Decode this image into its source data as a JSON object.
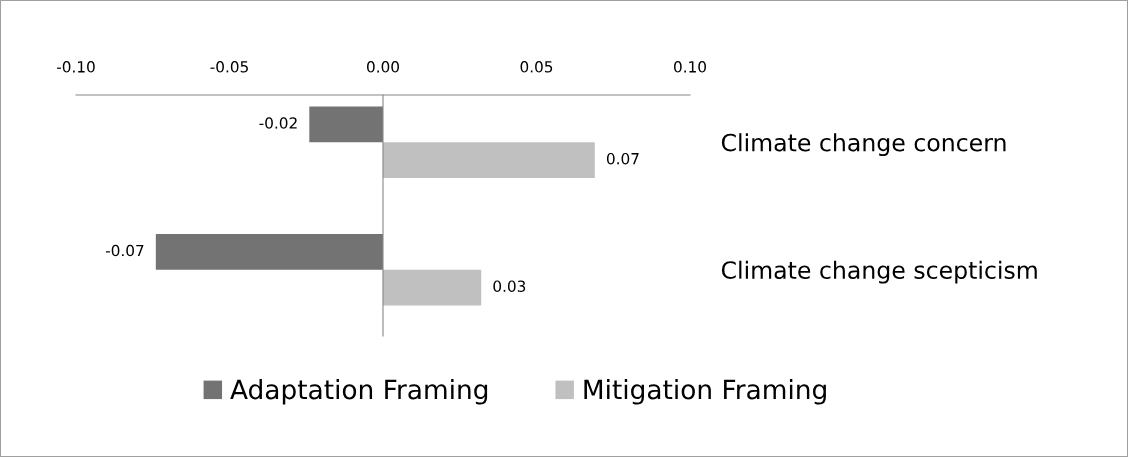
{
  "chart_data": {
    "type": "bar",
    "orientation": "horizontal",
    "categories": [
      "Climate change concern",
      "Climate change scepticism"
    ],
    "series": [
      {
        "name": "Adaptation Framing",
        "color": "#737373",
        "values": [
          -0.024,
          -0.074
        ],
        "value_labels": [
          "-0.02",
          "-0.07"
        ]
      },
      {
        "name": "Mitigation Framing",
        "color": "#c0c0c0",
        "values": [
          0.069,
          0.032
        ],
        "value_labels": [
          "0.07",
          "0.03"
        ]
      }
    ],
    "xlim": [
      -0.1,
      0.1
    ],
    "xticks": [
      {
        "value": -0.1,
        "label": "-0.10"
      },
      {
        "value": -0.05,
        "label": "-0.05"
      },
      {
        "value": 0,
        "label": "0.00"
      },
      {
        "value": 0.05,
        "label": "0.05"
      },
      {
        "value": 0.1,
        "label": "0.10"
      }
    ],
    "legend": "bottom"
  }
}
